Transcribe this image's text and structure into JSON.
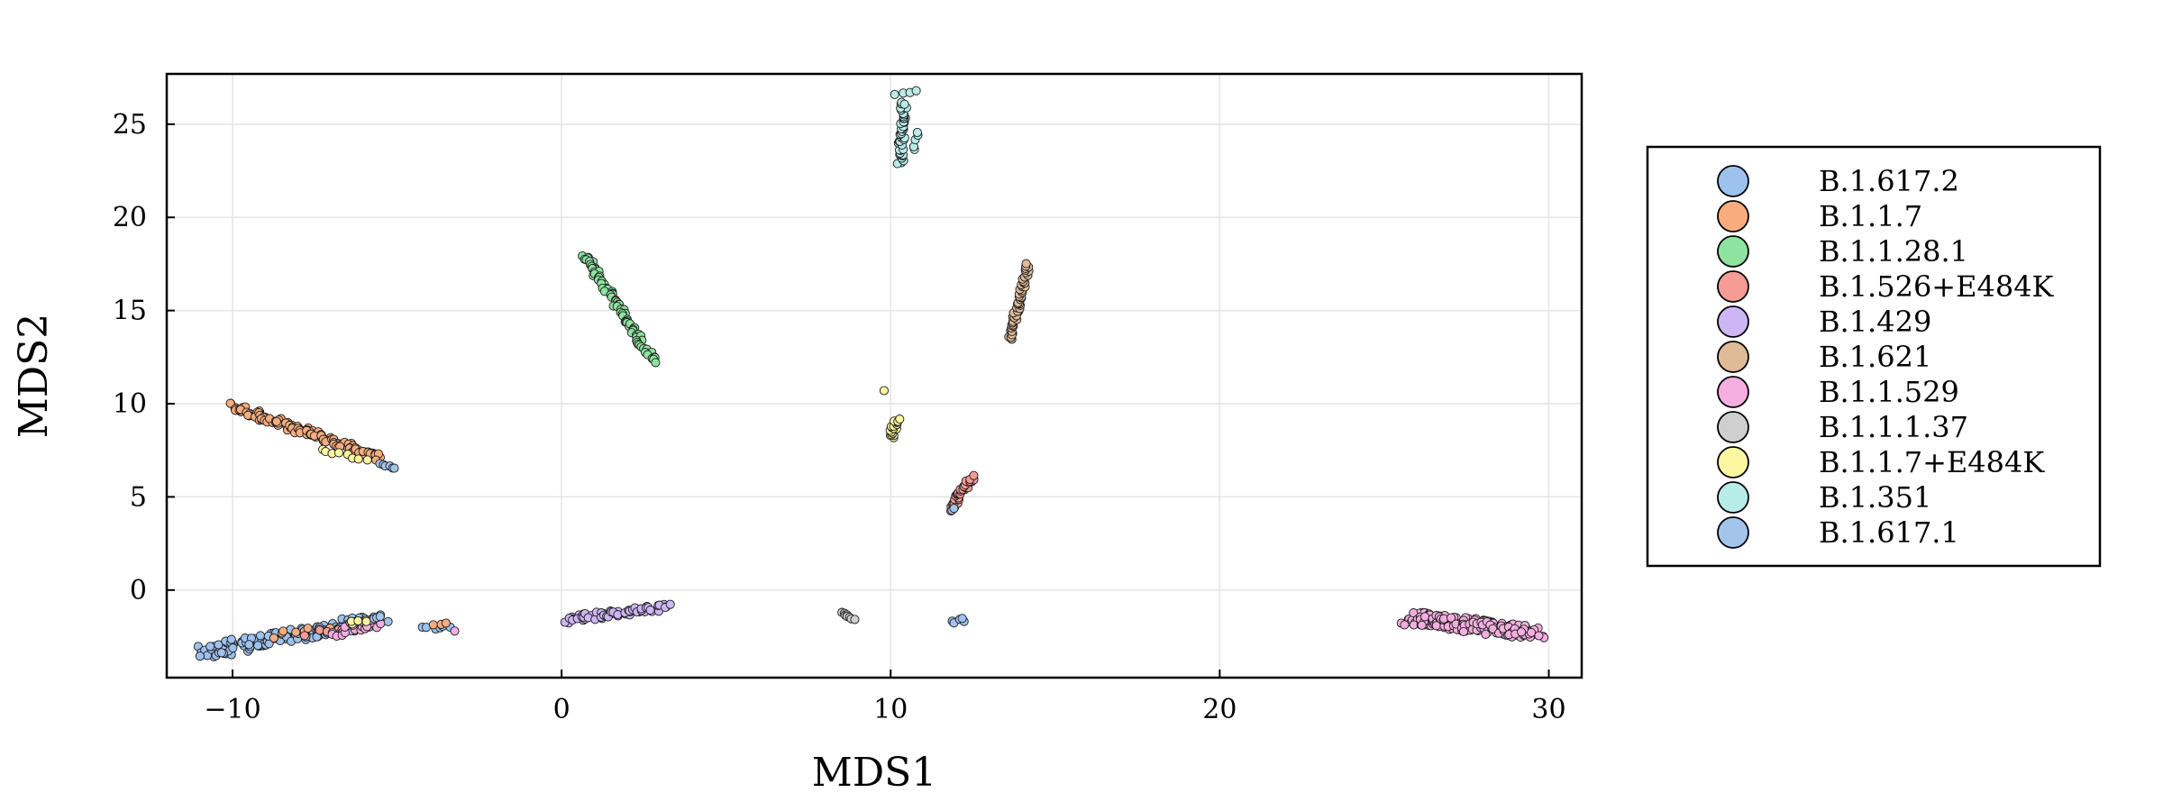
{
  "chart_data": {
    "type": "scatter",
    "xlabel": "MDS1",
    "ylabel": "MDS2",
    "xlim": [
      -12,
      31
    ],
    "ylim": [
      -4.7,
      27.7
    ],
    "xticks": [
      -10,
      0,
      10,
      20,
      30
    ],
    "yticks": [
      0,
      5,
      10,
      15,
      20,
      25
    ],
    "grid": true,
    "legend_position": "outside-right",
    "series": [
      {
        "name": "B.1.617.2",
        "color": "#9ec2ee",
        "clusters": [
          {
            "type": "line",
            "x0": -11.0,
            "y0": -3.4,
            "x1": -5.5,
            "y1": -1.6,
            "n": 160,
            "w": 0.35
          },
          {
            "type": "line",
            "x0": -4.3,
            "y0": -2.1,
            "x1": -3.3,
            "y1": -1.9,
            "n": 6,
            "w": 0.1
          },
          {
            "type": "line",
            "x0": 11.7,
            "y0": -1.7,
            "x1": 12.3,
            "y1": -1.6,
            "n": 5,
            "w": 0.15
          }
        ]
      },
      {
        "name": "B.1.1.7",
        "color": "#f9ad7e",
        "clusters": [
          {
            "type": "line",
            "x0": -10.0,
            "y0": 9.9,
            "x1": -5.6,
            "y1": 7.1,
            "n": 140,
            "w": 0.18
          },
          {
            "type": "line",
            "x0": -9.0,
            "y0": -2.5,
            "x1": -6.5,
            "y1": -1.9,
            "n": 10,
            "w": 0.15
          },
          {
            "type": "line",
            "x0": -4.0,
            "y0": -1.9,
            "x1": -3.4,
            "y1": -1.8,
            "n": 3,
            "w": 0.05
          }
        ]
      },
      {
        "name": "B.1.1.28.1",
        "color": "#8ee3a0",
        "clusters": [
          {
            "type": "line",
            "x0": 0.7,
            "y0": 18.0,
            "x1": 2.8,
            "y1": 12.2,
            "n": 80,
            "w": 0.12
          }
        ]
      },
      {
        "name": "B.1.526+E484K",
        "color": "#f59c94",
        "clusters": [
          {
            "type": "line",
            "x0": 11.8,
            "y0": 4.3,
            "x1": 12.5,
            "y1": 6.1,
            "n": 40,
            "w": 0.1
          },
          {
            "type": "line",
            "x0": -8.0,
            "y0": -2.4,
            "x1": -6.5,
            "y1": -2.0,
            "n": 4,
            "w": 0.1
          }
        ]
      },
      {
        "name": "B.1.429",
        "color": "#cdb6f4",
        "clusters": [
          {
            "type": "line",
            "x0": 0.1,
            "y0": -1.6,
            "x1": 3.2,
            "y1": -0.9,
            "n": 60,
            "w": 0.18
          }
        ]
      },
      {
        "name": "B.1.621",
        "color": "#dfbb97",
        "clusters": [
          {
            "type": "line",
            "x0": 13.6,
            "y0": 13.4,
            "x1": 14.2,
            "y1": 17.5,
            "n": 50,
            "w": 0.08
          }
        ]
      },
      {
        "name": "B.1.1.529",
        "color": "#f4aee0",
        "clusters": [
          {
            "type": "line",
            "x0": 25.8,
            "y0": -1.5,
            "x1": 29.6,
            "y1": -2.3,
            "n": 190,
            "w": 0.35
          },
          {
            "type": "line",
            "x0": -7.0,
            "y0": -2.4,
            "x1": -5.6,
            "y1": -1.7,
            "n": 25,
            "w": 0.25
          },
          {
            "type": "line",
            "x0": -3.3,
            "y0": -2.2,
            "x1": -3.2,
            "y1": -2.2,
            "n": 1,
            "w": 0.0
          }
        ]
      },
      {
        "name": "B.1.1.1.37",
        "color": "#cfcfcf",
        "clusters": [
          {
            "type": "line",
            "x0": 8.5,
            "y0": -1.2,
            "x1": 8.9,
            "y1": -1.6,
            "n": 8,
            "w": 0.05
          }
        ]
      },
      {
        "name": "B.1.1.7+E484K",
        "color": "#fdf7a2",
        "clusters": [
          {
            "type": "line",
            "x0": 10.0,
            "y0": 8.2,
            "x1": 10.2,
            "y1": 9.2,
            "n": 20,
            "w": 0.1
          },
          {
            "type": "line",
            "x0": 9.8,
            "y0": 10.7,
            "x1": 9.8,
            "y1": 10.7,
            "n": 1,
            "w": 0.0
          },
          {
            "type": "line",
            "x0": -7.4,
            "y0": 7.6,
            "x1": -5.8,
            "y1": 6.9,
            "n": 8,
            "w": 0.08
          },
          {
            "type": "line",
            "x0": -6.5,
            "y0": -1.8,
            "x1": -5.8,
            "y1": -1.6,
            "n": 5,
            "w": 0.1
          }
        ]
      },
      {
        "name": "B.1.351",
        "color": "#b8ece8",
        "clusters": [
          {
            "type": "line",
            "x0": 10.3,
            "y0": 22.8,
            "x1": 10.4,
            "y1": 26.2,
            "n": 45,
            "w": 0.1
          },
          {
            "type": "line",
            "x0": 10.0,
            "y0": 26.6,
            "x1": 10.9,
            "y1": 26.8,
            "n": 4,
            "w": 0.05
          },
          {
            "type": "line",
            "x0": 10.7,
            "y0": 23.5,
            "x1": 10.8,
            "y1": 24.7,
            "n": 5,
            "w": 0.08
          }
        ]
      },
      {
        "name": "B.1.617.1",
        "color": "#a3c4eb",
        "clusters": [
          {
            "type": "line",
            "x0": -5.6,
            "y0": 6.8,
            "x1": -5.0,
            "y1": 6.5,
            "n": 6,
            "w": 0.05
          },
          {
            "type": "line",
            "x0": -5.8,
            "y0": -1.6,
            "x1": -5.4,
            "y1": -1.4,
            "n": 3,
            "w": 0.05
          },
          {
            "type": "line",
            "x0": 11.8,
            "y0": 4.2,
            "x1": 11.9,
            "y1": 4.4,
            "n": 2,
            "w": 0.05
          }
        ]
      }
    ]
  }
}
